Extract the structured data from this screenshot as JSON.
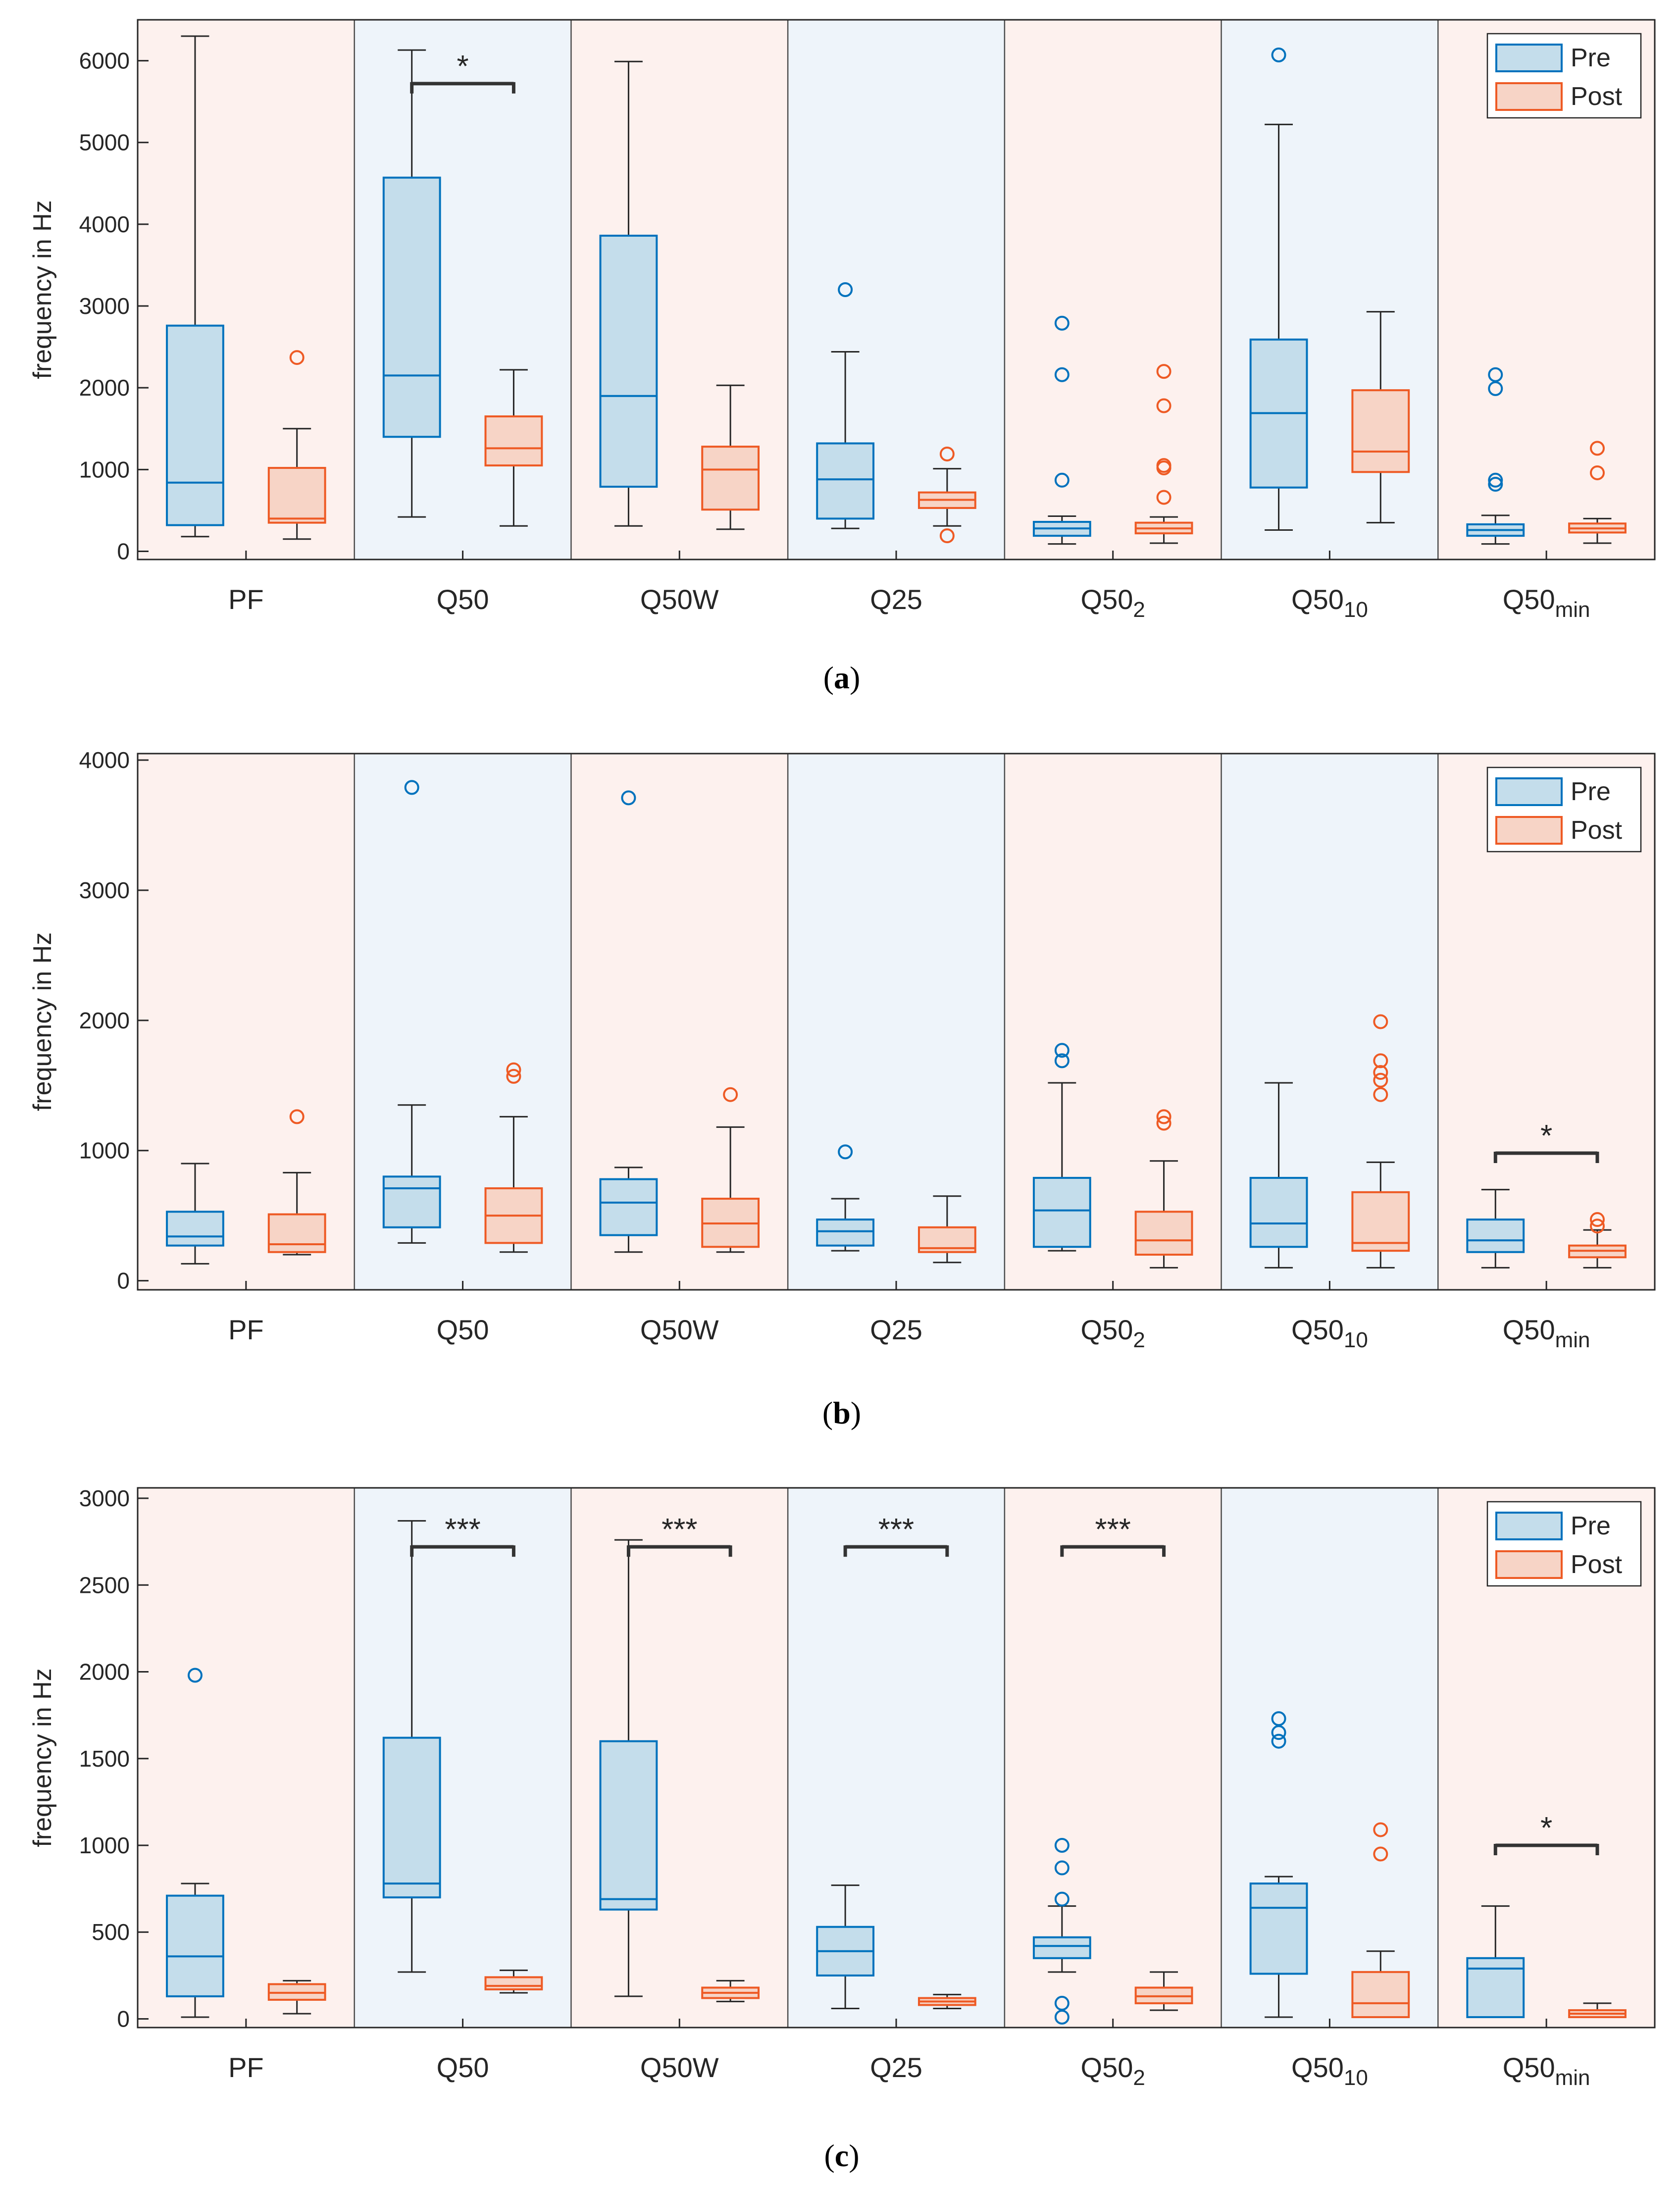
{
  "colors": {
    "pre": "#0072BD",
    "pre_fill": "#C4DDEB",
    "post": "#EE5A24",
    "post_fill": "#F7D4C6",
    "bg_pink": "#FDF1EE",
    "bg_blue": "#EEF4FA",
    "whisker": "#262626"
  },
  "chart_data": [
    {
      "type": "box",
      "caption": "(a)",
      "caption_letter": "a",
      "ylabel": "frequency in Hz",
      "ylim": [
        -100,
        6500
      ],
      "yticks": [
        0,
        1000,
        2000,
        3000,
        4000,
        5000,
        6000
      ],
      "legend": [
        "Pre",
        "Post"
      ],
      "legend_position": "top-right",
      "backgrounds": [
        "pink",
        "blue",
        "pink",
        "blue",
        "pink",
        "blue",
        "pink"
      ],
      "categories": [
        {
          "label": "PF",
          "sub": ""
        },
        {
          "label": "Q50",
          "sub": ""
        },
        {
          "label": "Q50W",
          "sub": ""
        },
        {
          "label": "Q25",
          "sub": ""
        },
        {
          "label": "Q50",
          "sub": "2"
        },
        {
          "label": "Q50",
          "sub": "10"
        },
        {
          "label": "Q50",
          "sub": "min"
        }
      ],
      "series": [
        {
          "name": "Pre",
          "boxes": [
            {
              "min": 180,
              "q1": 320,
              "median": 840,
              "q3": 2760,
              "max": 6300,
              "outliers": []
            },
            {
              "min": 420,
              "q1": 1400,
              "median": 2150,
              "q3": 4570,
              "max": 6130,
              "outliers": []
            },
            {
              "min": 310,
              "q1": 790,
              "median": 1900,
              "q3": 3860,
              "max": 5990,
              "outliers": []
            },
            {
              "min": 280,
              "q1": 400,
              "median": 880,
              "q3": 1320,
              "max": 2440,
              "outliers": [
                3200
              ]
            },
            {
              "min": 90,
              "q1": 190,
              "median": 280,
              "q3": 360,
              "max": 430,
              "outliers": [
                870,
                2160,
                2790
              ]
            },
            {
              "min": 260,
              "q1": 780,
              "median": 1690,
              "q3": 2590,
              "max": 5220,
              "outliers": [
                6070
              ]
            },
            {
              "min": 90,
              "q1": 190,
              "median": 260,
              "q3": 330,
              "max": 440,
              "outliers": [
                820,
                870,
                1990,
                2160
              ]
            }
          ]
        },
        {
          "name": "Post",
          "boxes": [
            {
              "min": 150,
              "q1": 350,
              "median": 400,
              "q3": 1020,
              "max": 1500,
              "outliers": [
                2370
              ]
            },
            {
              "min": 310,
              "q1": 1050,
              "median": 1260,
              "q3": 1650,
              "max": 2220,
              "outliers": []
            },
            {
              "min": 270,
              "q1": 510,
              "median": 1000,
              "q3": 1280,
              "max": 2030,
              "outliers": []
            },
            {
              "min": 310,
              "q1": 530,
              "median": 630,
              "q3": 720,
              "max": 1010,
              "outliers": [
                190,
                1190
              ]
            },
            {
              "min": 100,
              "q1": 220,
              "median": 280,
              "q3": 350,
              "max": 420,
              "outliers": [
                660,
                1020,
                1050,
                1780,
                2200
              ]
            },
            {
              "min": 350,
              "q1": 970,
              "median": 1220,
              "q3": 1970,
              "max": 2930,
              "outliers": []
            },
            {
              "min": 100,
              "q1": 230,
              "median": 280,
              "q3": 340,
              "max": 400,
              "outliers": [
                960,
                1260
              ]
            }
          ]
        }
      ],
      "significance": [
        {
          "category_index": 1,
          "y": 5720,
          "label": "*"
        }
      ]
    },
    {
      "type": "box",
      "caption": "(b)",
      "caption_letter": "b",
      "ylabel": "frequency in Hz",
      "ylim": [
        -70,
        4050
      ],
      "yticks": [
        0,
        1000,
        2000,
        3000,
        4000
      ],
      "legend": [
        "Pre",
        "Post"
      ],
      "legend_position": "top-right",
      "backgrounds": [
        "pink",
        "blue",
        "pink",
        "blue",
        "pink",
        "blue",
        "pink"
      ],
      "categories": [
        {
          "label": "PF",
          "sub": ""
        },
        {
          "label": "Q50",
          "sub": ""
        },
        {
          "label": "Q50W",
          "sub": ""
        },
        {
          "label": "Q25",
          "sub": ""
        },
        {
          "label": "Q50",
          "sub": "2"
        },
        {
          "label": "Q50",
          "sub": "10"
        },
        {
          "label": "Q50",
          "sub": "min"
        }
      ],
      "series": [
        {
          "name": "Pre",
          "boxes": [
            {
              "min": 130,
              "q1": 270,
              "median": 340,
              "q3": 530,
              "max": 900,
              "outliers": []
            },
            {
              "min": 290,
              "q1": 410,
              "median": 710,
              "q3": 800,
              "max": 1350,
              "outliers": [
                3790
              ]
            },
            {
              "min": 220,
              "q1": 350,
              "median": 600,
              "q3": 780,
              "max": 870,
              "outliers": [
                3710
              ]
            },
            {
              "min": 230,
              "q1": 270,
              "median": 380,
              "q3": 470,
              "max": 630,
              "outliers": [
                990
              ]
            },
            {
              "min": 230,
              "q1": 260,
              "median": 540,
              "q3": 790,
              "max": 1520,
              "outliers": [
                1690,
                1770
              ]
            },
            {
              "min": 100,
              "q1": 260,
              "median": 440,
              "q3": 790,
              "max": 1520,
              "outliers": []
            },
            {
              "min": 100,
              "q1": 220,
              "median": 310,
              "q3": 470,
              "max": 700,
              "outliers": []
            }
          ]
        },
        {
          "name": "Post",
          "boxes": [
            {
              "min": 200,
              "q1": 220,
              "median": 280,
              "q3": 510,
              "max": 830,
              "outliers": [
                1260
              ]
            },
            {
              "min": 220,
              "q1": 290,
              "median": 500,
              "q3": 710,
              "max": 1260,
              "outliers": [
                1570,
                1620
              ]
            },
            {
              "min": 220,
              "q1": 260,
              "median": 440,
              "q3": 630,
              "max": 1180,
              "outliers": [
                1430
              ]
            },
            {
              "min": 140,
              "q1": 220,
              "median": 250,
              "q3": 410,
              "max": 650,
              "outliers": []
            },
            {
              "min": 100,
              "q1": 200,
              "median": 310,
              "q3": 530,
              "max": 920,
              "outliers": [
                1210,
                1260
              ]
            },
            {
              "min": 100,
              "q1": 230,
              "median": 290,
              "q3": 680,
              "max": 910,
              "outliers": [
                1430,
                1540,
                1600,
                1690,
                1990
              ]
            },
            {
              "min": 100,
              "q1": 180,
              "median": 230,
              "q3": 270,
              "max": 390,
              "outliers": [
                420,
                470
              ]
            }
          ]
        }
      ],
      "significance": [
        {
          "category_index": 6,
          "y": 980,
          "label": "*"
        }
      ]
    },
    {
      "type": "box",
      "caption": "(c)",
      "caption_letter": "c",
      "ylabel": "frequency in Hz",
      "ylim": [
        -50,
        3060
      ],
      "yticks": [
        0,
        500,
        1000,
        1500,
        2000,
        2500,
        3000
      ],
      "legend": [
        "Pre",
        "Post"
      ],
      "legend_position": "top-right",
      "backgrounds": [
        "pink",
        "blue",
        "pink",
        "blue",
        "pink",
        "blue",
        "pink"
      ],
      "categories": [
        {
          "label": "PF",
          "sub": ""
        },
        {
          "label": "Q50",
          "sub": ""
        },
        {
          "label": "Q50W",
          "sub": ""
        },
        {
          "label": "Q25",
          "sub": ""
        },
        {
          "label": "Q50",
          "sub": "2"
        },
        {
          "label": "Q50",
          "sub": "10"
        },
        {
          "label": "Q50",
          "sub": "min"
        }
      ],
      "series": [
        {
          "name": "Pre",
          "boxes": [
            {
              "min": 10,
              "q1": 130,
              "median": 360,
              "q3": 710,
              "max": 780,
              "outliers": [
                1980
              ]
            },
            {
              "min": 270,
              "q1": 700,
              "median": 780,
              "q3": 1620,
              "max": 2870,
              "outliers": []
            },
            {
              "min": 130,
              "q1": 630,
              "median": 690,
              "q3": 1600,
              "max": 2760,
              "outliers": []
            },
            {
              "min": 60,
              "q1": 250,
              "median": 390,
              "q3": 530,
              "max": 770,
              "outliers": []
            },
            {
              "min": 270,
              "q1": 350,
              "median": 420,
              "q3": 470,
              "max": 650,
              "outliers": [
                10,
                90,
                690,
                870,
                1000
              ]
            },
            {
              "min": 10,
              "q1": 260,
              "median": 640,
              "q3": 780,
              "max": 820,
              "outliers": [
                1600,
                1650,
                1730
              ]
            },
            {
              "min": 10,
              "q1": 10,
              "median": 290,
              "q3": 350,
              "max": 650,
              "outliers": []
            }
          ]
        },
        {
          "name": "Post",
          "boxes": [
            {
              "min": 30,
              "q1": 110,
              "median": 150,
              "q3": 200,
              "max": 220,
              "outliers": []
            },
            {
              "min": 150,
              "q1": 170,
              "median": 190,
              "q3": 240,
              "max": 280,
              "outliers": []
            },
            {
              "min": 100,
              "q1": 120,
              "median": 150,
              "q3": 180,
              "max": 220,
              "outliers": []
            },
            {
              "min": 60,
              "q1": 80,
              "median": 100,
              "q3": 120,
              "max": 140,
              "outliers": []
            },
            {
              "min": 50,
              "q1": 90,
              "median": 130,
              "q3": 180,
              "max": 270,
              "outliers": []
            },
            {
              "min": 10,
              "q1": 10,
              "median": 90,
              "q3": 270,
              "max": 390,
              "outliers": [
                950,
                1090
              ]
            },
            {
              "min": 10,
              "q1": 10,
              "median": 30,
              "q3": 50,
              "max": 90,
              "outliers": []
            }
          ]
        }
      ],
      "significance": [
        {
          "category_index": 1,
          "y": 2720,
          "label": "***"
        },
        {
          "category_index": 2,
          "y": 2720,
          "label": "***"
        },
        {
          "category_index": 3,
          "y": 2720,
          "label": "***"
        },
        {
          "category_index": 4,
          "y": 2720,
          "label": "***"
        },
        {
          "category_index": 6,
          "y": 1000,
          "label": "*"
        }
      ]
    }
  ]
}
